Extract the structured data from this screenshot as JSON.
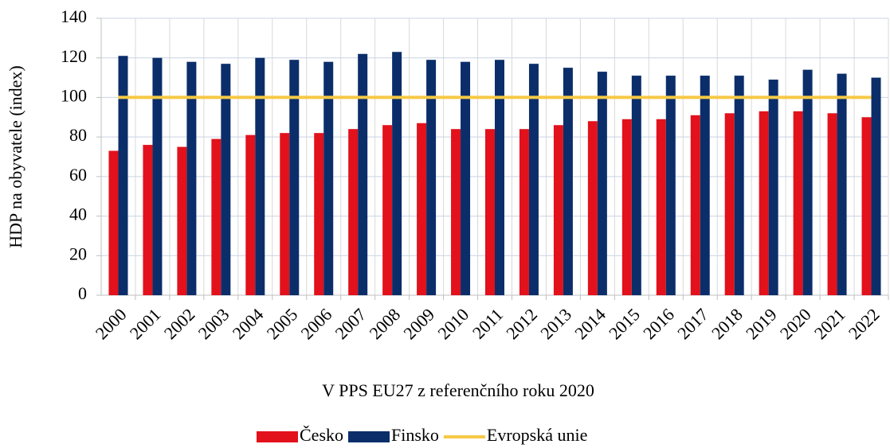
{
  "chart_data": {
    "type": "bar",
    "x_label": "V PPS EU27 z referenčního roku 2020",
    "y_label": "HDP na obyvatele (index)",
    "categories": [
      "2000",
      "2001",
      "2002",
      "2003",
      "2004",
      "2005",
      "2006",
      "2007",
      "2008",
      "2009",
      "2010",
      "2011",
      "2012",
      "2013",
      "2014",
      "2015",
      "2016",
      "2017",
      "2018",
      "2019",
      "2020",
      "2021",
      "2022"
    ],
    "series": [
      {
        "name": "Česko",
        "type": "bar",
        "color": "#e2111b",
        "values": [
          73,
          76,
          75,
          79,
          81,
          82,
          82,
          84,
          86,
          87,
          84,
          84,
          84,
          86,
          88,
          89,
          89,
          91,
          92,
          93,
          93,
          92,
          90
        ]
      },
      {
        "name": "Finsko",
        "type": "bar",
        "color": "#0b2e6a",
        "values": [
          121,
          120,
          118,
          117,
          120,
          119,
          118,
          122,
          123,
          119,
          118,
          119,
          117,
          115,
          113,
          111,
          111,
          111,
          111,
          109,
          114,
          112,
          110
        ]
      },
      {
        "name": "Evropská unie",
        "type": "line",
        "color": "#f6c945",
        "values": [
          100,
          100,
          100,
          100,
          100,
          100,
          100,
          100,
          100,
          100,
          100,
          100,
          100,
          100,
          100,
          100,
          100,
          100,
          100,
          100,
          100,
          100,
          100
        ]
      }
    ],
    "ylim": [
      0,
      140
    ],
    "yticks": [
      0,
      20,
      40,
      60,
      80,
      100,
      120,
      140
    ],
    "grid": true,
    "legend": "bottom"
  }
}
